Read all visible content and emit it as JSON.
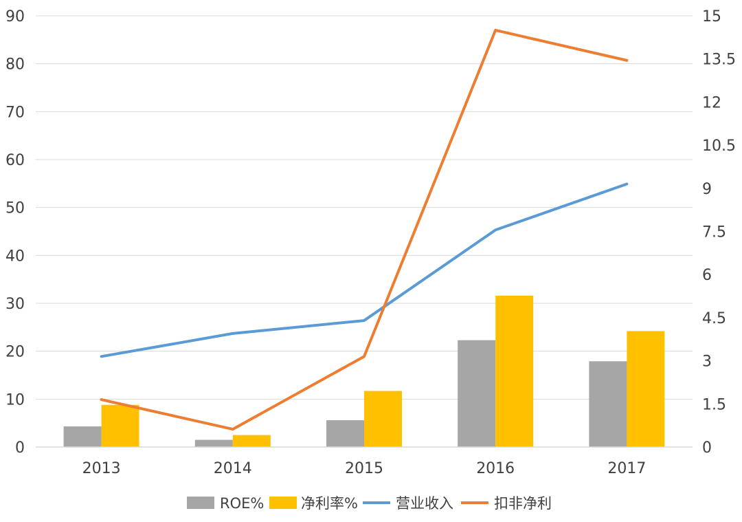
{
  "chart_data": {
    "type": "bar",
    "categories": [
      "2013",
      "2014",
      "2015",
      "2016",
      "2017"
    ],
    "series": [
      {
        "name": "ROE%",
        "kind": "bar",
        "axis": "left",
        "color": "#A6A6A6",
        "values": [
          4.3,
          1.5,
          5.6,
          22.3,
          17.9
        ]
      },
      {
        "name": "净利率%",
        "kind": "bar",
        "axis": "left",
        "color": "#FFC000",
        "values": [
          8.8,
          2.5,
          11.7,
          31.6,
          24.2
        ]
      },
      {
        "name": "营业收入",
        "kind": "line",
        "axis": "right",
        "color": "#5B9BD5",
        "values": [
          3.15,
          3.95,
          4.4,
          7.55,
          9.15
        ]
      },
      {
        "name": "扣非净利",
        "kind": "line",
        "axis": "right",
        "color": "#ED7D31",
        "values": [
          1.65,
          0.62,
          3.15,
          14.5,
          13.45
        ]
      }
    ],
    "y_left": {
      "min": 0,
      "max": 90,
      "ticks": [
        "0",
        "10",
        "20",
        "30",
        "40",
        "50",
        "60",
        "70",
        "80",
        "90"
      ]
    },
    "y_right": {
      "min": 0,
      "max": 15,
      "ticks": [
        "0",
        "1.5",
        "3",
        "4.5",
        "6",
        "7.5",
        "9",
        "10.5",
        "12",
        "13.5",
        "15"
      ]
    },
    "title": "",
    "xlabel": "",
    "ylabel": "",
    "grid": true,
    "legend_position": "bottom"
  }
}
